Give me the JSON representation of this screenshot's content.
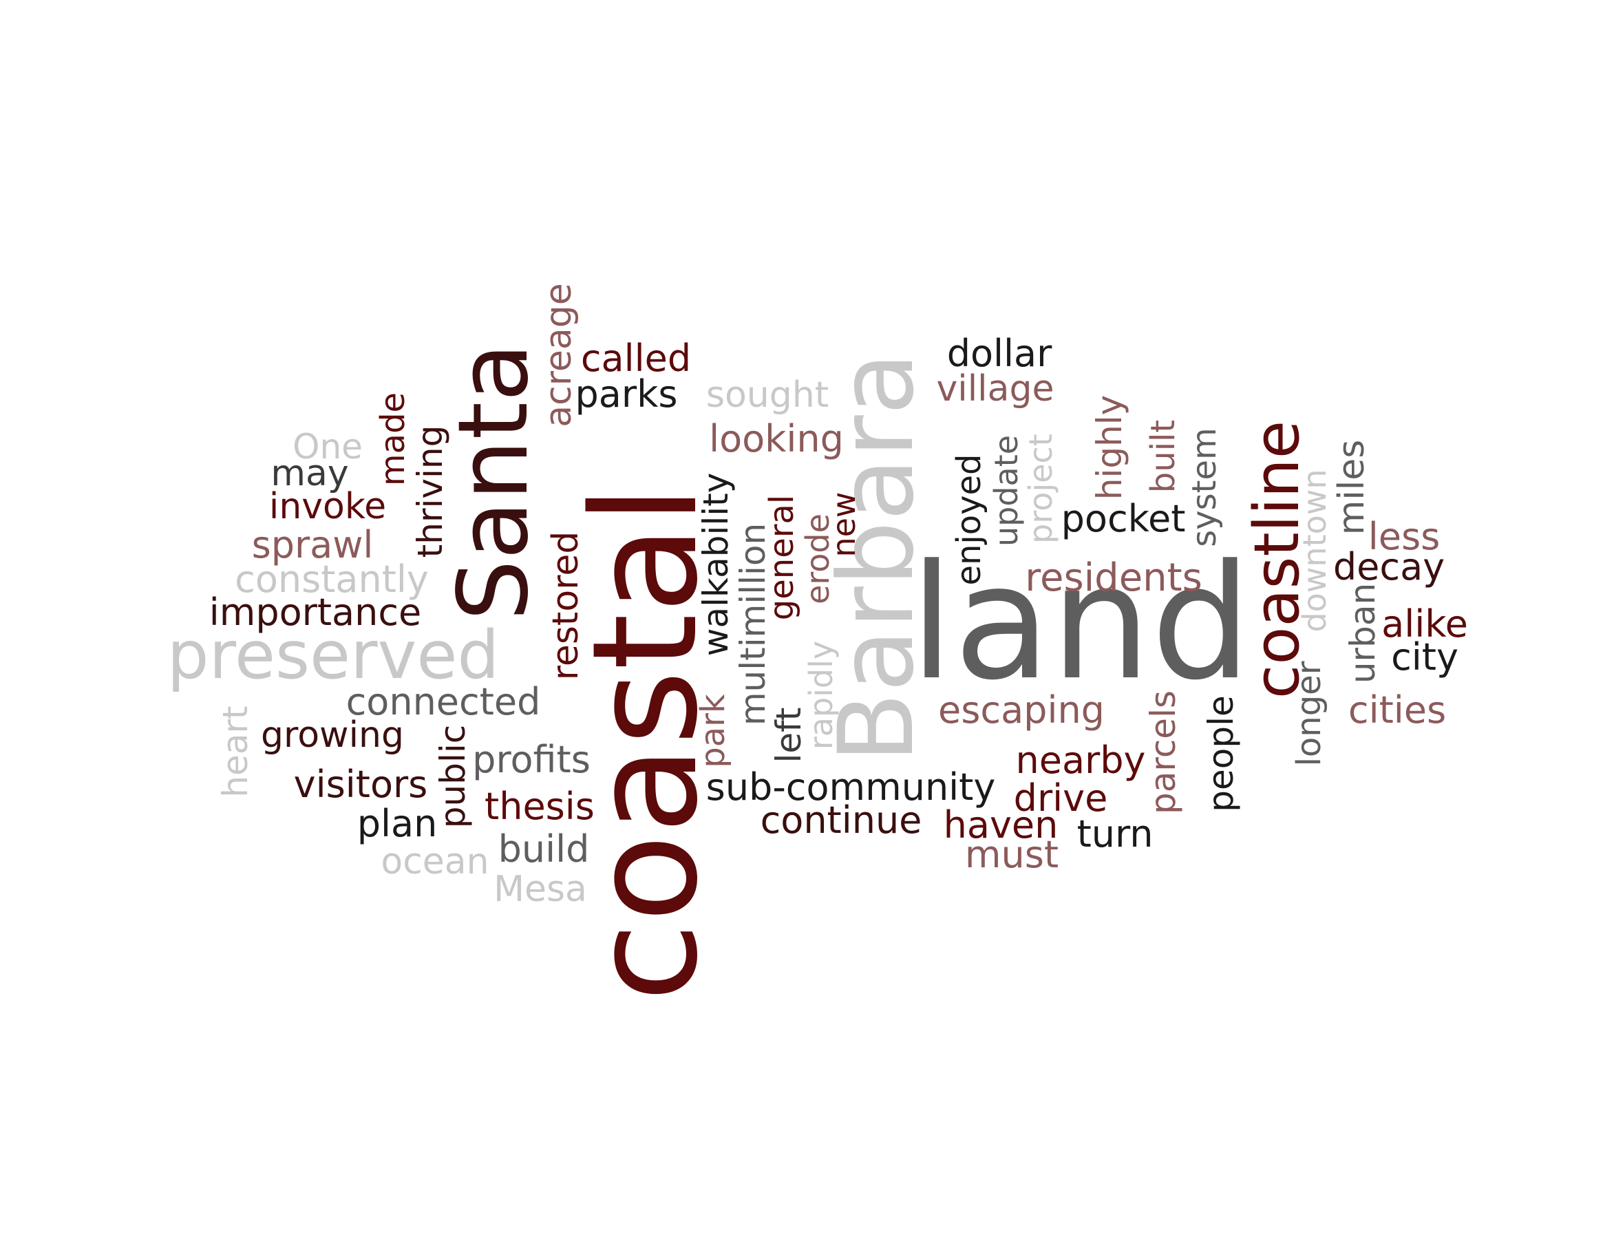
{
  "palette": {
    "maroon": "#5c0a0a",
    "dark": "#3a0f0f",
    "rose": "#8c5a5a",
    "gray": "#5e5e5e",
    "light": "#c8c8c8"
  },
  "words": [
    {
      "text": "coastal",
      "color": "#5c0a0a"
    },
    {
      "text": "land",
      "color": "#5e5e5e"
    },
    {
      "text": "Barbara",
      "color": "#c8c8c8"
    },
    {
      "text": "Santa",
      "color": "#3a0f0f"
    },
    {
      "text": "coastline",
      "color": "#5c0a0a"
    },
    {
      "text": "preserved",
      "color": "#c8c8c8"
    },
    {
      "text": "called",
      "color": "#5c0a0a"
    },
    {
      "text": "parks",
      "color": "#1a1a1a"
    },
    {
      "text": "acreage",
      "color": "#8c5a5a"
    },
    {
      "text": "sought",
      "color": "#c8c8c8"
    },
    {
      "text": "dollar",
      "color": "#1a1a1a"
    },
    {
      "text": "village",
      "color": "#8c5a5a"
    },
    {
      "text": "looking",
      "color": "#8c5a5a"
    },
    {
      "text": "One",
      "color": "#c8c8c8"
    },
    {
      "text": "may",
      "color": "#3a3a3a"
    },
    {
      "text": "made",
      "color": "#5c0a0a"
    },
    {
      "text": "invoke",
      "color": "#5c0a0a"
    },
    {
      "text": "thriving",
      "color": "#3a0f0f"
    },
    {
      "text": "sprawl",
      "color": "#8c5a5a"
    },
    {
      "text": "constantly",
      "color": "#c8c8c8"
    },
    {
      "text": "importance",
      "color": "#3a0f0f"
    },
    {
      "text": "restored",
      "color": "#5c0a0a"
    },
    {
      "text": "walkability",
      "color": "#1a1a1a"
    },
    {
      "text": "multimillion",
      "color": "#5e5e5e"
    },
    {
      "text": "general",
      "color": "#5c0a0a"
    },
    {
      "text": "erode",
      "color": "#8c5a5a"
    },
    {
      "text": "new",
      "color": "#5c0a0a"
    },
    {
      "text": "enjoyed",
      "color": "#1a1a1a"
    },
    {
      "text": "update",
      "color": "#5e5e5e"
    },
    {
      "text": "project",
      "color": "#c8c8c8"
    },
    {
      "text": "highly",
      "color": "#8c5a5a"
    },
    {
      "text": "built",
      "color": "#8c5a5a"
    },
    {
      "text": "system",
      "color": "#5e5e5e"
    },
    {
      "text": "pocket",
      "color": "#1a1a1a"
    },
    {
      "text": "residents",
      "color": "#8c5a5a"
    },
    {
      "text": "downtown",
      "color": "#c8c8c8"
    },
    {
      "text": "miles",
      "color": "#5e5e5e"
    },
    {
      "text": "less",
      "color": "#8c5a5a"
    },
    {
      "text": "decay",
      "color": "#3a0f0f"
    },
    {
      "text": "urban",
      "color": "#5e5e5e"
    },
    {
      "text": "alike",
      "color": "#5c0a0a"
    },
    {
      "text": "city",
      "color": "#1a1a1a"
    },
    {
      "text": "cities",
      "color": "#8c5a5a"
    },
    {
      "text": "longer",
      "color": "#5e5e5e"
    },
    {
      "text": "people",
      "color": "#1a1a1a"
    },
    {
      "text": "parcels",
      "color": "#8c5a5a"
    },
    {
      "text": "escaping",
      "color": "#8c5a5a"
    },
    {
      "text": "nearby",
      "color": "#5c0a0a"
    },
    {
      "text": "drive",
      "color": "#5c0a0a"
    },
    {
      "text": "haven",
      "color": "#5c0a0a"
    },
    {
      "text": "turn",
      "color": "#1a1a1a"
    },
    {
      "text": "must",
      "color": "#8c5a5a"
    },
    {
      "text": "rapidly",
      "color": "#c8c8c8"
    },
    {
      "text": "left",
      "color": "#3a3a3a"
    },
    {
      "text": "park",
      "color": "#8c5a5a"
    },
    {
      "text": "sub-community",
      "color": "#1a1a1a"
    },
    {
      "text": "continue",
      "color": "#3a0f0f"
    },
    {
      "text": "connected",
      "color": "#5e5e5e"
    },
    {
      "text": "heart",
      "color": "#c8c8c8"
    },
    {
      "text": "growing",
      "color": "#3a0f0f"
    },
    {
      "text": "public",
      "color": "#3a0f0f"
    },
    {
      "text": "profits",
      "color": "#5e5e5e"
    },
    {
      "text": "visitors",
      "color": "#3a0f0f"
    },
    {
      "text": "thesis",
      "color": "#5c0a0a"
    },
    {
      "text": "plan",
      "color": "#1a1a1a"
    },
    {
      "text": "build",
      "color": "#5e5e5e"
    },
    {
      "text": "ocean",
      "color": "#c8c8c8"
    },
    {
      "text": "Mesa",
      "color": "#c8c8c8"
    }
  ]
}
